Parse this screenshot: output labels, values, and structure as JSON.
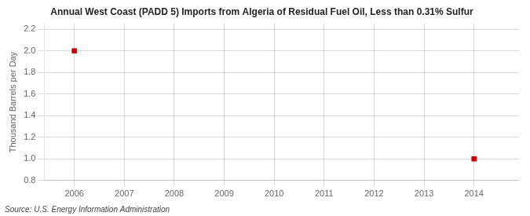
{
  "chart_data": {
    "type": "scatter",
    "title": "Annual West Coast (PADD 5) Imports from Algeria of Residual Fuel Oil, Less than 0.31% Sulfur",
    "ylabel": "Thousand Barrels per Day",
    "annotation": "Source: U.S. Energy Information Administration",
    "x": [
      2006,
      2014
    ],
    "values": [
      2.0,
      1.0
    ],
    "color": "#cc0000",
    "marker": "square",
    "xlim": [
      2005.4,
      2014.9
    ],
    "xticks": [
      2006,
      2007,
      2008,
      2009,
      2010,
      2011,
      2012,
      2013,
      2014
    ],
    "ylim": [
      0.8,
      2.25
    ],
    "yticks": [
      0.8,
      {
        "value": 1.0,
        "label": "1.0"
      },
      1.2,
      1.4,
      1.6,
      1.8,
      {
        "value": 2.0,
        "label": "2.0"
      },
      2.2
    ],
    "grid": true
  }
}
